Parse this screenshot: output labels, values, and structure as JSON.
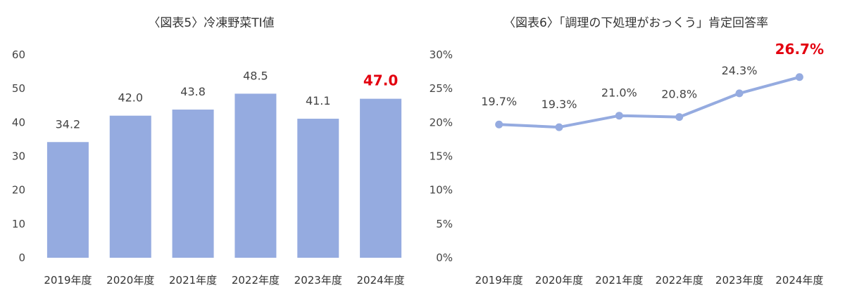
{
  "chart_data": [
    {
      "type": "bar",
      "title": "〈図表5〉冷凍野菜TI値",
      "categories": [
        "2019年度",
        "2020年度",
        "2021年度",
        "2022年度",
        "2023年度",
        "2024年度"
      ],
      "values": [
        34.2,
        42.0,
        43.8,
        48.5,
        41.1,
        47.0
      ],
      "data_labels": [
        "34.2",
        "42.0",
        "43.8",
        "48.5",
        "41.1",
        "47.0"
      ],
      "highlight_index": 5,
      "ylim": [
        0,
        60
      ],
      "yticks": [
        0,
        10,
        20,
        30,
        40,
        50,
        60
      ],
      "ytick_labels": [
        "0",
        "10",
        "20",
        "30",
        "40",
        "50",
        "60"
      ],
      "grid": false,
      "legend": "none",
      "colors": {
        "bar": "#95abe0",
        "label": "#444444",
        "highlight": "#e3000f"
      }
    },
    {
      "type": "line",
      "title": "〈図表6〉「調理の下処理がおっくう」肯定回答率",
      "categories": [
        "2019年度",
        "2020年度",
        "2021年度",
        "2022年度",
        "2023年度",
        "2024年度"
      ],
      "values": [
        19.7,
        19.3,
        21.0,
        20.8,
        24.3,
        26.7
      ],
      "data_labels": [
        "19.7%",
        "19.3%",
        "21.0%",
        "20.8%",
        "24.3%",
        "26.7%"
      ],
      "highlight_index": 5,
      "ylim": [
        0,
        30
      ],
      "yticks": [
        0,
        5,
        10,
        15,
        20,
        25,
        30
      ],
      "ytick_labels": [
        "0%",
        "5%",
        "10%",
        "15%",
        "20%",
        "25%",
        "30%"
      ],
      "grid": false,
      "legend": "none",
      "colors": {
        "line": "#95abe0",
        "label": "#444444",
        "highlight": "#e3000f"
      }
    }
  ]
}
